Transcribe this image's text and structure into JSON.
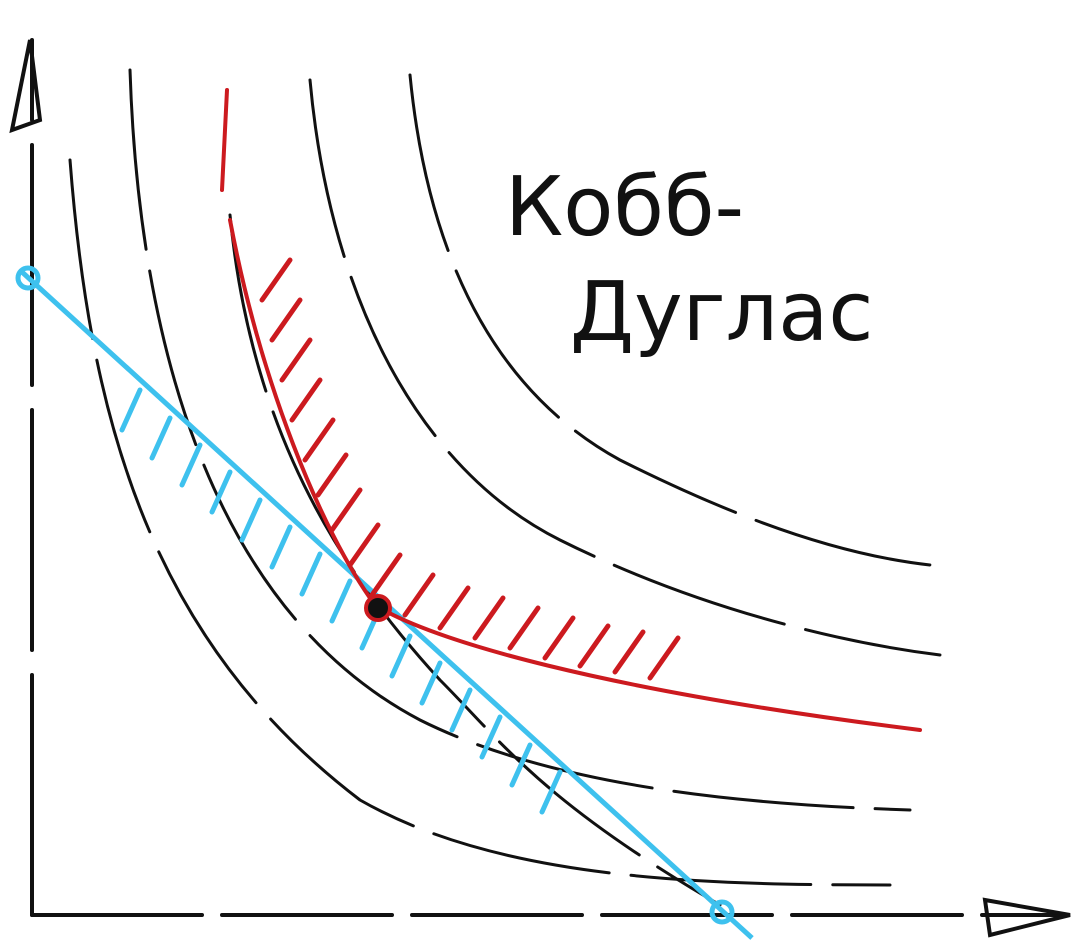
{
  "title": {
    "line1": "Кобб-",
    "line2": "Дуглас"
  }
}
